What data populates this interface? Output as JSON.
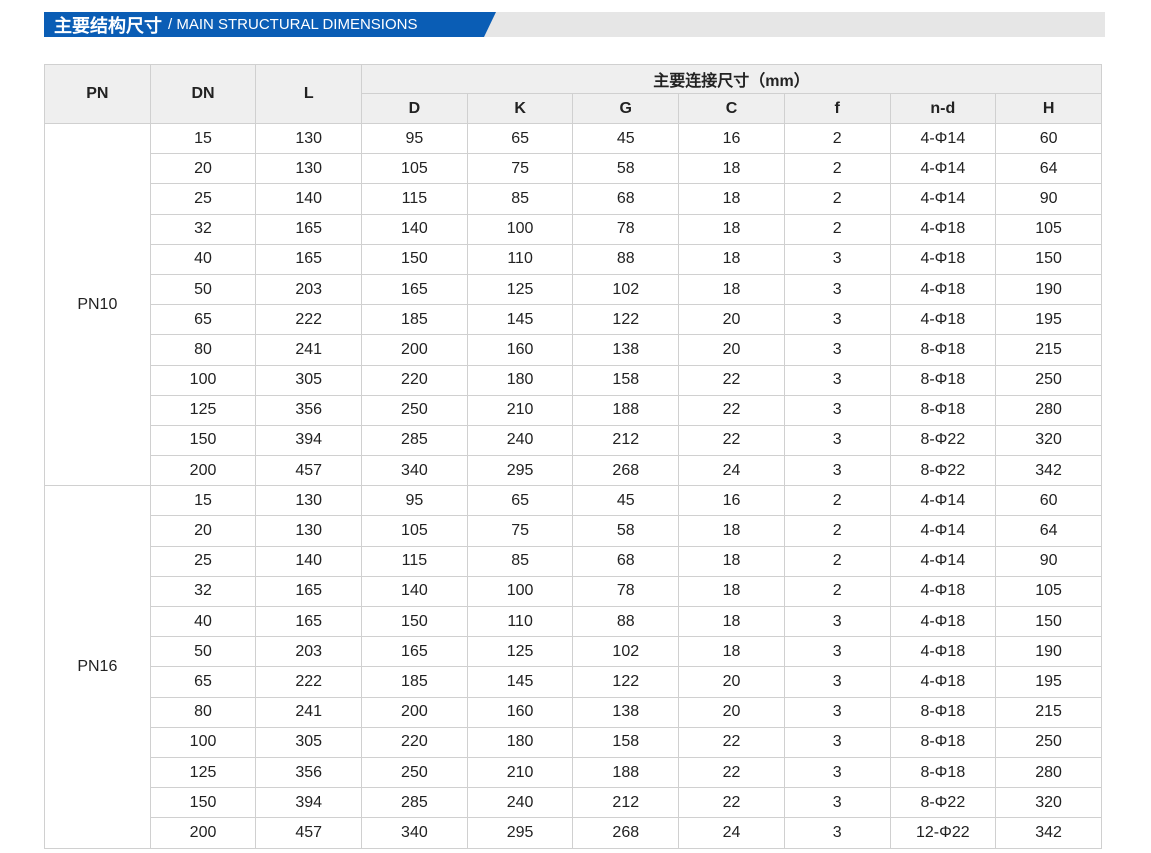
{
  "title": {
    "cn": "主要结构尺寸",
    "en": "/ MAIN STRUCTURAL DIMENSIONS"
  },
  "header": {
    "pn": "PN",
    "dn": "DN",
    "l": "L",
    "group": "主要连接尺寸（mm）",
    "sub": [
      "D",
      "K",
      "G",
      "C",
      "f",
      "n-d",
      "H"
    ]
  },
  "groups": [
    {
      "pn": "PN10",
      "rows": [
        [
          "15",
          "130",
          "95",
          "65",
          "45",
          "16",
          "2",
          "4-Φ14",
          "60"
        ],
        [
          "20",
          "130",
          "105",
          "75",
          "58",
          "18",
          "2",
          "4-Φ14",
          "64"
        ],
        [
          "25",
          "140",
          "115",
          "85",
          "68",
          "18",
          "2",
          "4-Φ14",
          "90"
        ],
        [
          "32",
          "165",
          "140",
          "100",
          "78",
          "18",
          "2",
          "4-Φ18",
          "105"
        ],
        [
          "40",
          "165",
          "150",
          "110",
          "88",
          "18",
          "3",
          "4-Φ18",
          "150"
        ],
        [
          "50",
          "203",
          "165",
          "125",
          "102",
          "18",
          "3",
          "4-Φ18",
          "190"
        ],
        [
          "65",
          "222",
          "185",
          "145",
          "122",
          "20",
          "3",
          "4-Φ18",
          "195"
        ],
        [
          "80",
          "241",
          "200",
          "160",
          "138",
          "20",
          "3",
          "8-Φ18",
          "215"
        ],
        [
          "100",
          "305",
          "220",
          "180",
          "158",
          "22",
          "3",
          "8-Φ18",
          "250"
        ],
        [
          "125",
          "356",
          "250",
          "210",
          "188",
          "22",
          "3",
          "8-Φ18",
          "280"
        ],
        [
          "150",
          "394",
          "285",
          "240",
          "212",
          "22",
          "3",
          "8-Φ22",
          "320"
        ],
        [
          "200",
          "457",
          "340",
          "295",
          "268",
          "24",
          "3",
          "8-Φ22",
          "342"
        ]
      ]
    },
    {
      "pn": "PN16",
      "rows": [
        [
          "15",
          "130",
          "95",
          "65",
          "45",
          "16",
          "2",
          "4-Φ14",
          "60"
        ],
        [
          "20",
          "130",
          "105",
          "75",
          "58",
          "18",
          "2",
          "4-Φ14",
          "64"
        ],
        [
          "25",
          "140",
          "115",
          "85",
          "68",
          "18",
          "2",
          "4-Φ14",
          "90"
        ],
        [
          "32",
          "165",
          "140",
          "100",
          "78",
          "18",
          "2",
          "4-Φ18",
          "105"
        ],
        [
          "40",
          "165",
          "150",
          "110",
          "88",
          "18",
          "3",
          "4-Φ18",
          "150"
        ],
        [
          "50",
          "203",
          "165",
          "125",
          "102",
          "18",
          "3",
          "4-Φ18",
          "190"
        ],
        [
          "65",
          "222",
          "185",
          "145",
          "122",
          "20",
          "3",
          "4-Φ18",
          "195"
        ],
        [
          "80",
          "241",
          "200",
          "160",
          "138",
          "20",
          "3",
          "8-Φ18",
          "215"
        ],
        [
          "100",
          "305",
          "220",
          "180",
          "158",
          "22",
          "3",
          "8-Φ18",
          "250"
        ],
        [
          "125",
          "356",
          "250",
          "210",
          "188",
          "22",
          "3",
          "8-Φ18",
          "280"
        ],
        [
          "150",
          "394",
          "285",
          "240",
          "212",
          "22",
          "3",
          "8-Φ22",
          "320"
        ],
        [
          "200",
          "457",
          "340",
          "295",
          "268",
          "24",
          "3",
          "12-Φ22",
          "342"
        ]
      ]
    }
  ]
}
